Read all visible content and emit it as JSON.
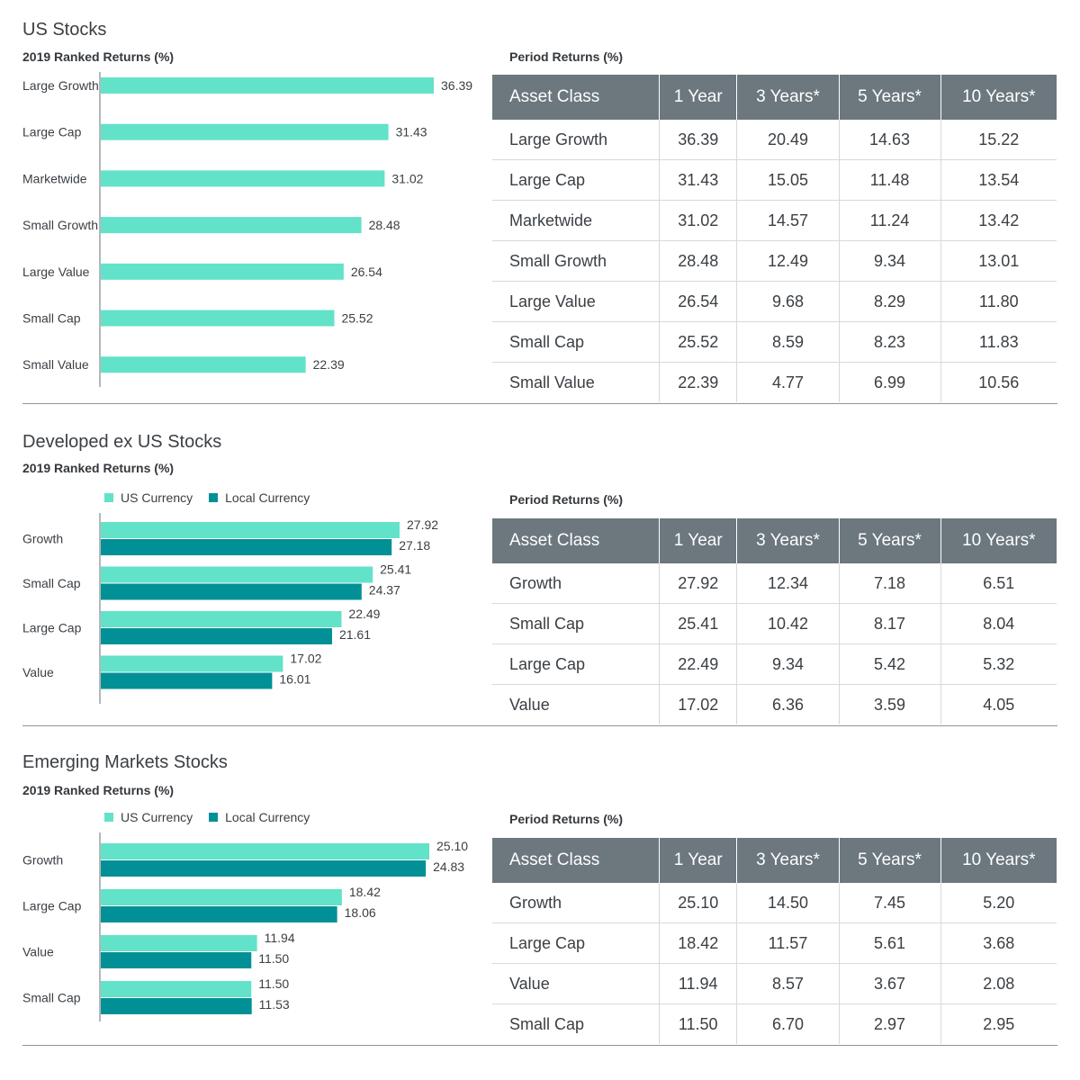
{
  "colors": {
    "us_currency": "#62e2c9",
    "local_currency": "#009095",
    "table_header": "#6c777e",
    "axis": "#6b6f73"
  },
  "sections": [
    {
      "title": "US Stocks",
      "subtitle": "2019 Ranked Returns (%)",
      "period_label": "Period Returns (%)",
      "chart_data": {
        "type": "bar",
        "orientation": "horizontal",
        "title": "2019 Ranked Returns (%)",
        "categories": [
          "Large Growth",
          "Large Cap",
          "Marketwide",
          "Small Growth",
          "Large Value",
          "Small Cap",
          "Small Value"
        ],
        "series": [
          {
            "values": [
              36.39,
              31.43,
              31.02,
              28.48,
              26.54,
              25.52,
              22.39
            ]
          }
        ],
        "value_labels": [
          [
            "36.39",
            "31.43",
            "31.02",
            "28.48",
            "26.54",
            "25.52",
            "22.39"
          ]
        ],
        "xlim": [
          0,
          36.39
        ]
      },
      "table": {
        "headers": [
          "Asset Class",
          "1 Year",
          "3 Years*",
          "5 Years*",
          "10 Years*"
        ],
        "rows": [
          [
            "Large Growth",
            "36.39",
            "20.49",
            "14.63",
            "15.22"
          ],
          [
            "Large Cap",
            "31.43",
            "15.05",
            "11.48",
            "13.54"
          ],
          [
            "Marketwide",
            "31.02",
            "14.57",
            "11.24",
            "13.42"
          ],
          [
            "Small Growth",
            "28.48",
            "12.49",
            "9.34",
            "13.01"
          ],
          [
            "Large Value",
            "26.54",
            "9.68",
            "8.29",
            "11.80"
          ],
          [
            "Small Cap",
            "25.52",
            "8.59",
            "8.23",
            "11.83"
          ],
          [
            "Small Value",
            "22.39",
            "4.77",
            "6.99",
            "10.56"
          ]
        ]
      }
    },
    {
      "title": "Developed ex US Stocks",
      "subtitle": "2019 Ranked Returns (%)",
      "period_label": "Period Returns (%)",
      "legend": [
        "US Currency",
        "Local Currency"
      ],
      "chart_data": {
        "type": "bar",
        "orientation": "horizontal",
        "title": "2019 Ranked Returns (%)",
        "categories": [
          "Growth",
          "Small Cap",
          "Large Cap",
          "Value"
        ],
        "series": [
          {
            "name": "US Currency",
            "values": [
              27.92,
              25.41,
              22.49,
              17.02
            ]
          },
          {
            "name": "Local Currency",
            "values": [
              27.18,
              24.37,
              21.61,
              16.01
            ]
          }
        ],
        "value_labels": [
          [
            "27.92",
            "25.41",
            "22.49",
            "17.02"
          ],
          [
            "27.18",
            "24.37",
            "21.61",
            "16.01"
          ]
        ],
        "legend_position": "top-left",
        "xlim": [
          0,
          27.92
        ]
      },
      "table": {
        "headers": [
          "Asset Class",
          "1 Year",
          "3 Years*",
          "5 Years*",
          "10 Years*"
        ],
        "rows": [
          [
            "Growth",
            "27.92",
            "12.34",
            "7.18",
            "6.51"
          ],
          [
            "Small Cap",
            "25.41",
            "10.42",
            "8.17",
            "8.04"
          ],
          [
            "Large Cap",
            "22.49",
            "9.34",
            "5.42",
            "5.32"
          ],
          [
            "Value",
            "17.02",
            "6.36",
            "3.59",
            "4.05"
          ]
        ]
      }
    },
    {
      "title": "Emerging Markets Stocks",
      "subtitle": "2019 Ranked Returns (%)",
      "period_label": "Period Returns (%)",
      "legend": [
        "US Currency",
        "Local Currency"
      ],
      "chart_data": {
        "type": "bar",
        "orientation": "horizontal",
        "title": "2019 Ranked Returns (%)",
        "categories": [
          "Growth",
          "Large Cap",
          "Value",
          "Small Cap"
        ],
        "series": [
          {
            "name": "US Currency",
            "values": [
              25.1,
              18.42,
              11.94,
              11.5
            ]
          },
          {
            "name": "Local Currency",
            "values": [
              24.83,
              18.06,
              11.5,
              11.53
            ]
          }
        ],
        "value_labels": [
          [
            "25.10",
            "18.42",
            "11.94",
            "11.50"
          ],
          [
            "24.83",
            "18.06",
            "11.50",
            "11.53"
          ]
        ],
        "legend_position": "top-left",
        "xlim": [
          0,
          25.1
        ]
      },
      "table": {
        "headers": [
          "Asset Class",
          "1 Year",
          "3 Years*",
          "5 Years*",
          "10 Years*"
        ],
        "rows": [
          [
            "Growth",
            "25.10",
            "14.50",
            "7.45",
            "5.20"
          ],
          [
            "Large Cap",
            "18.42",
            "11.57",
            "5.61",
            "3.68"
          ],
          [
            "Value",
            "11.94",
            "8.57",
            "3.67",
            "2.08"
          ],
          [
            "Small Cap",
            "11.50",
            "6.70",
            "2.97",
            "2.95"
          ]
        ]
      }
    }
  ]
}
